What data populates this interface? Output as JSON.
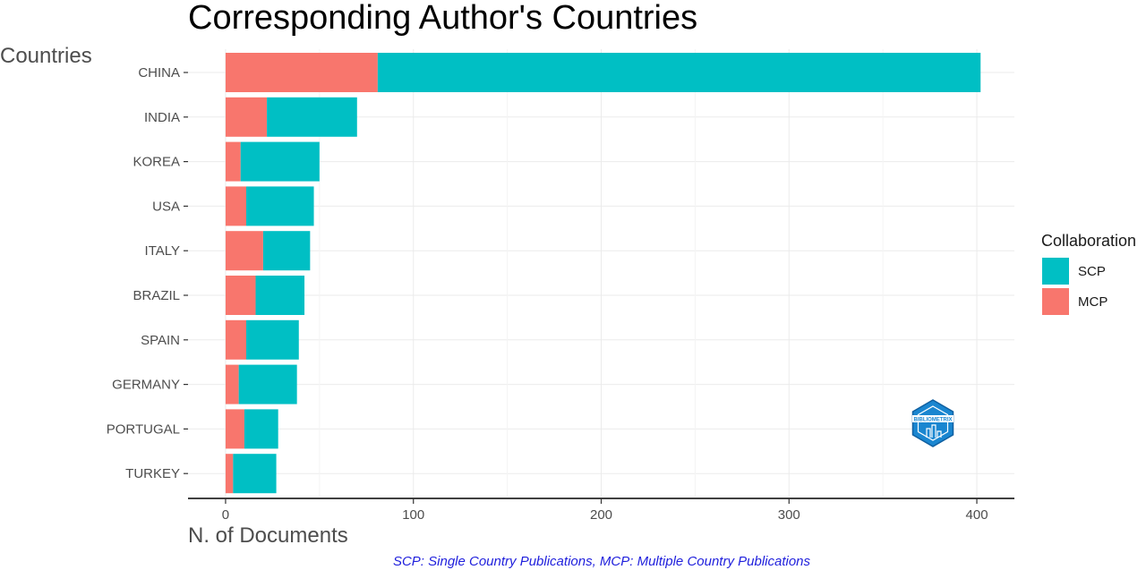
{
  "chart_data": {
    "type": "bar",
    "orientation": "horizontal",
    "stacked": true,
    "title": "Corresponding Author's Countries",
    "ylabel": "Countries",
    "xlabel": "N. of Documents",
    "categories": [
      "CHINA",
      "INDIA",
      "KOREA",
      "USA",
      "ITALY",
      "BRAZIL",
      "SPAIN",
      "GERMANY",
      "PORTUGAL",
      "TURKEY"
    ],
    "series": [
      {
        "name": "MCP",
        "color": "#F8766D",
        "values": [
          81,
          22,
          8,
          11,
          20,
          16,
          11,
          7,
          10,
          4
        ]
      },
      {
        "name": "SCP",
        "color": "#00BFC4",
        "values": [
          321,
          48,
          42,
          36,
          25,
          26,
          28,
          31,
          18,
          23
        ]
      }
    ],
    "xlim": [
      -20,
      420
    ],
    "xticks": [
      0,
      100,
      200,
      300,
      400
    ],
    "grid": true,
    "legend": {
      "title": "Collaboration",
      "placement": "right",
      "order": [
        "SCP",
        "MCP"
      ]
    },
    "caption": "SCP: Single Country Publications, MCP: Multiple Country Publications",
    "caption_color": "#1f1fdc",
    "logo_text": "BIBLIOMETRIX"
  }
}
